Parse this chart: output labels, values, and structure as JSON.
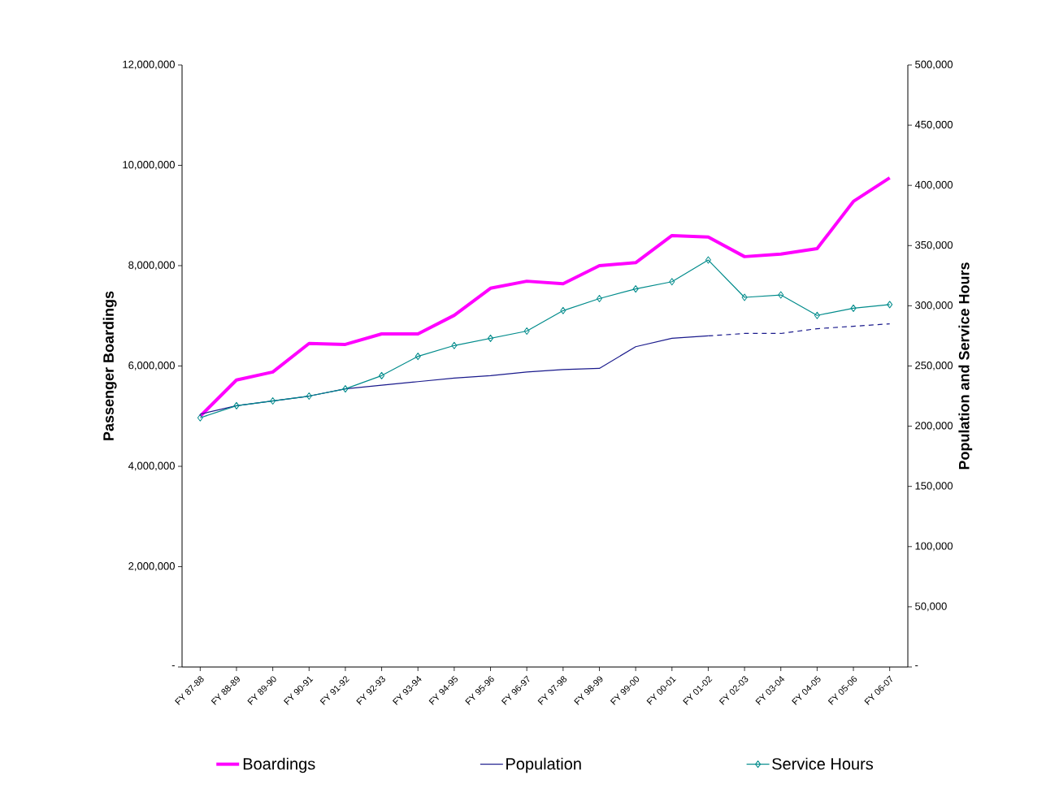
{
  "chart_data": {
    "type": "line",
    "ylabel": "Passenger Boardings",
    "y2label": "Population and Service Hours",
    "categories": [
      "FY 87-88",
      "FY 88-89",
      "FY 89-90",
      "FY 90-91",
      "FY 91-92",
      "FY 92-93",
      "FY 93-94",
      "FY 94-95",
      "FY 95-96",
      "FY 96-97",
      "FY 97-98",
      "FY 98-99",
      "FY 99-00",
      "FY 00-01",
      "FY 01-02",
      "FY 02-03",
      "FY 03-04",
      "FY 04-05",
      "FY 05-06",
      "FY 06-07"
    ],
    "series": [
      {
        "name": "Boardings",
        "color": "#ff00ff",
        "values": [
          5000000,
          5720000,
          5880000,
          6450000,
          6430000,
          6640000,
          6640000,
          7010000,
          7550000,
          7690000,
          7640000,
          8000000,
          8060000,
          8600000,
          8570000,
          8180000,
          8230000,
          8340000,
          9280000,
          9750000
        ]
      },
      {
        "name": "Population",
        "color": "#1a1a8c",
        "axis": "y2",
        "line_style": "solid",
        "values": [
          210000,
          217000,
          221000,
          225000,
          231000,
          234000,
          237000,
          240000,
          242000,
          245000,
          247000,
          248000,
          266000,
          273000,
          275000,
          null,
          null,
          null,
          null,
          null
        ]
      },
      {
        "color": "#1a1a8c",
        "axis": "y2",
        "line_style": "dashed",
        "values": [
          null,
          null,
          null,
          null,
          null,
          null,
          null,
          null,
          null,
          null,
          null,
          null,
          null,
          null,
          275000,
          277000,
          277000,
          281000,
          283000,
          285000
        ]
      },
      {
        "name": "Service Hours",
        "color": "#008b8b",
        "axis": "y2",
        "marker": "diamond",
        "line_style": "solid",
        "values": [
          207000,
          217000,
          221000,
          225000,
          231000,
          242000,
          258000,
          267000,
          273000,
          279000,
          296000,
          306000,
          314000,
          320000,
          338000,
          307000,
          309000,
          292000,
          298000,
          301000
        ]
      }
    ],
    "ylim": [
      0,
      12000000
    ],
    "yticks": [
      {
        "value": 0,
        "label": "-"
      },
      {
        "value": 2000000,
        "label": "2,000,000"
      },
      {
        "value": 4000000,
        "label": "4,000,000"
      },
      {
        "value": 6000000,
        "label": "6,000,000"
      },
      {
        "value": 8000000,
        "label": "8,000,000"
      },
      {
        "value": 10000000,
        "label": "10,000,000"
      },
      {
        "value": 12000000,
        "label": "12,000,000"
      }
    ],
    "y2lim": [
      0,
      500000
    ],
    "y2ticks": [
      {
        "value": 0,
        "label": "-"
      },
      {
        "value": 50000,
        "label": "50,000"
      },
      {
        "value": 100000,
        "label": "100,000"
      },
      {
        "value": 150000,
        "label": "150,000"
      },
      {
        "value": 200000,
        "label": "200,000"
      },
      {
        "value": 250000,
        "label": "250,000"
      },
      {
        "value": 300000,
        "label": "300,000"
      },
      {
        "value": 350000,
        "label": "350,000"
      },
      {
        "value": 400000,
        "label": "400,000"
      },
      {
        "value": 450000,
        "label": "450,000"
      },
      {
        "value": 500000,
        "label": "500,000"
      }
    ],
    "legend": "bottom"
  }
}
